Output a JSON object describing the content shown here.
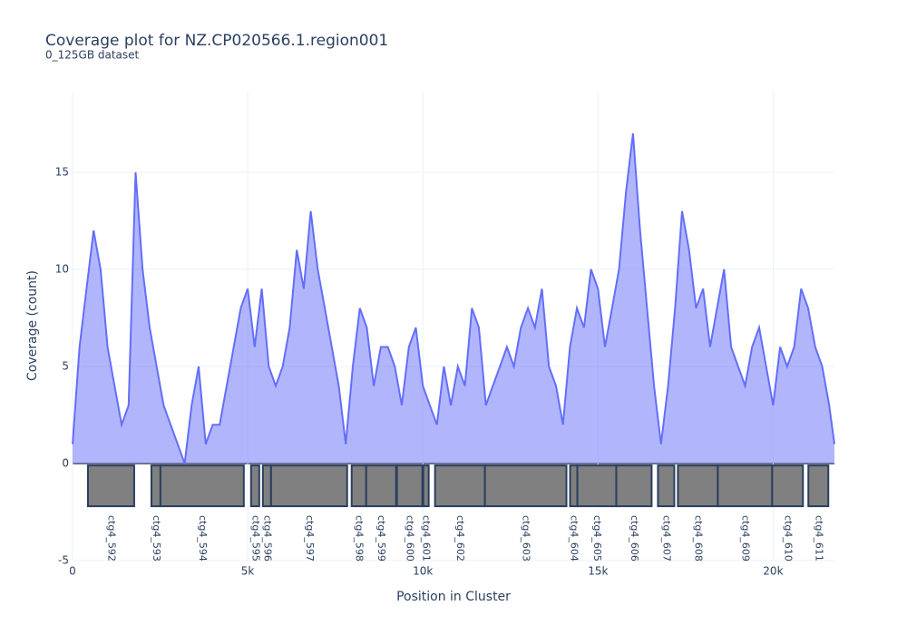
{
  "chart_data": {
    "type": "line",
    "title": "Coverage plot for NZ.CP020566.1.region001",
    "subtitle": "0_125GB dataset",
    "x_label": "Position in Cluster",
    "y_label": "Coverage (count)",
    "color": "#636efa",
    "fill": true,
    "grid": true,
    "xlim": [
      0,
      21750
    ],
    "ylim": [
      -5,
      19.2
    ],
    "xticks": [
      0,
      {
        "value": 5000,
        "label": "5k"
      },
      {
        "value": 10000,
        "label": "10k"
      },
      {
        "value": 15000,
        "label": "15k"
      },
      {
        "value": 20000,
        "label": "20k"
      }
    ],
    "yticks": [
      -5,
      0,
      5,
      10,
      15
    ],
    "x": [
      0,
      200,
      400,
      600,
      800,
      1000,
      1200,
      1400,
      1600,
      1800,
      2000,
      2200,
      2400,
      2600,
      2800,
      3000,
      3200,
      3400,
      3600,
      3800,
      4000,
      4200,
      4400,
      4600,
      4800,
      5000,
      5200,
      5400,
      5600,
      5800,
      6000,
      6200,
      6400,
      6600,
      6800,
      7000,
      7200,
      7400,
      7600,
      7800,
      8000,
      8200,
      8400,
      8600,
      8800,
      9000,
      9200,
      9400,
      9600,
      9800,
      10000,
      10200,
      10400,
      10600,
      10800,
      11000,
      11200,
      11400,
      11600,
      11800,
      12000,
      12200,
      12400,
      12600,
      12800,
      13000,
      13200,
      13400,
      13600,
      13800,
      14000,
      14200,
      14400,
      14600,
      14800,
      15000,
      15200,
      15400,
      15600,
      15800,
      16000,
      16200,
      16400,
      16600,
      16800,
      17000,
      17200,
      17400,
      17600,
      17800,
      18000,
      18200,
      18400,
      18600,
      18800,
      19000,
      19200,
      19400,
      19600,
      19800,
      20000,
      20200,
      20400,
      20600,
      20800,
      21000,
      21200,
      21400,
      21600,
      21750
    ],
    "values": [
      1,
      6,
      9,
      12,
      10,
      6,
      4,
      2,
      3,
      15,
      10,
      7,
      5,
      3,
      2,
      1,
      0,
      3,
      5,
      1,
      2,
      2,
      4,
      6,
      8,
      9,
      6,
      9,
      5,
      4,
      5,
      7,
      11,
      9,
      13,
      10,
      8,
      6,
      4,
      1,
      5,
      8,
      7,
      4,
      6,
      6,
      5,
      3,
      6,
      7,
      4,
      3,
      2,
      5,
      3,
      5,
      4,
      8,
      7,
      3,
      4,
      5,
      6,
      5,
      7,
      8,
      7,
      9,
      5,
      4,
      2,
      6,
      8,
      7,
      10,
      9,
      6,
      8,
      10,
      14,
      17,
      12,
      8,
      4,
      1,
      4,
      8,
      13,
      11,
      8,
      9,
      6,
      8,
      10,
      6,
      5,
      4,
      6,
      7,
      5,
      3,
      6,
      5,
      6,
      9,
      8,
      6,
      5,
      3,
      1
    ],
    "genes": [
      {
        "name": "ctg4_592",
        "start": 440,
        "end": 1759
      },
      {
        "name": "ctg4_593",
        "start": 2251,
        "end": 2509
      },
      {
        "name": "ctg4_594",
        "start": 2509,
        "end": 4889
      },
      {
        "name": "ctg4_595",
        "start": 5096,
        "end": 5329
      },
      {
        "name": "ctg4_596",
        "start": 5433,
        "end": 5666
      },
      {
        "name": "ctg4_597",
        "start": 5666,
        "end": 7839
      },
      {
        "name": "ctg4_598",
        "start": 7968,
        "end": 8382
      },
      {
        "name": "ctg4_599",
        "start": 8382,
        "end": 9236
      },
      {
        "name": "ctg4_600",
        "start": 9261,
        "end": 9986
      },
      {
        "name": "ctg4_601",
        "start": 10012,
        "end": 10167
      },
      {
        "name": "ctg4_602",
        "start": 10348,
        "end": 11771
      },
      {
        "name": "ctg4_603",
        "start": 11771,
        "end": 14099
      },
      {
        "name": "ctg4_604",
        "start": 14203,
        "end": 14410
      },
      {
        "name": "ctg4_605",
        "start": 14410,
        "end": 15522
      },
      {
        "name": "ctg4_606",
        "start": 15522,
        "end": 16531
      },
      {
        "name": "ctg4_607",
        "start": 16712,
        "end": 17178
      },
      {
        "name": "ctg4_608",
        "start": 17281,
        "end": 18420
      },
      {
        "name": "ctg4_609",
        "start": 18420,
        "end": 19972
      },
      {
        "name": "ctg4_610",
        "start": 19972,
        "end": 20851
      },
      {
        "name": "ctg4_611",
        "start": 21006,
        "end": 21575
      }
    ]
  }
}
